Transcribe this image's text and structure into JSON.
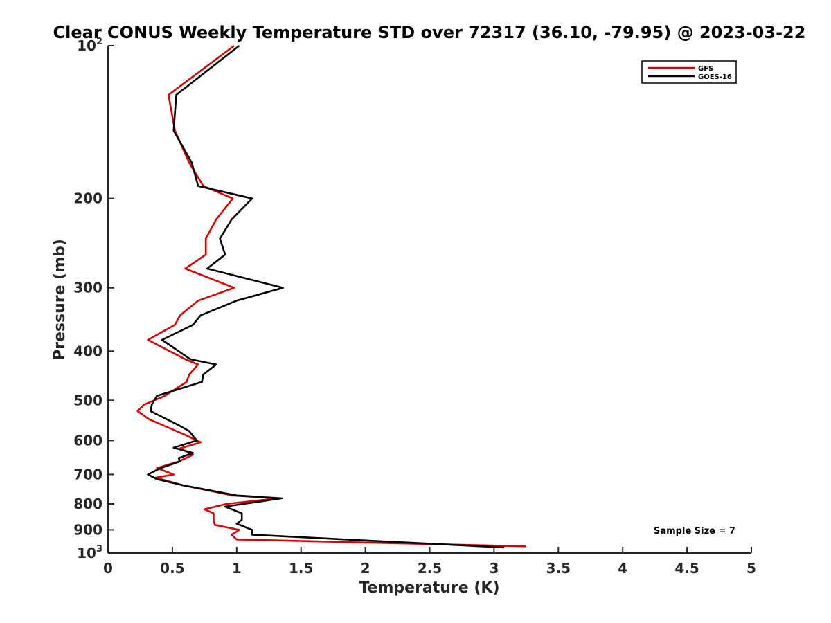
{
  "chart_data": {
    "type": "line",
    "title": "Clear CONUS Weekly Temperature STD over 72317 (36.10, -79.95) @ 2023-03-22",
    "xlabel": "Temperature (K)",
    "ylabel": "Pressure (mb)",
    "xlim": [
      0,
      5
    ],
    "ylim": [
      100,
      1000
    ],
    "y_scale": "log",
    "y_reversed": true,
    "grid": false,
    "legend_position": "top-right",
    "x_ticks": [
      {
        "value": 0,
        "label": "0"
      },
      {
        "value": 0.5,
        "label": "0.5"
      },
      {
        "value": 1,
        "label": "1"
      },
      {
        "value": 1.5,
        "label": "1.5"
      },
      {
        "value": 2,
        "label": "2"
      },
      {
        "value": 2.5,
        "label": "2.5"
      },
      {
        "value": 3,
        "label": "3"
      },
      {
        "value": 3.5,
        "label": "3.5"
      },
      {
        "value": 4,
        "label": "4"
      },
      {
        "value": 4.5,
        "label": "4.5"
      },
      {
        "value": 5,
        "label": "5"
      }
    ],
    "y_ticks": [
      {
        "value": 100,
        "base": "10",
        "sup": "2"
      },
      {
        "value": 200,
        "label": "200"
      },
      {
        "value": 300,
        "label": "300"
      },
      {
        "value": 400,
        "label": "400"
      },
      {
        "value": 500,
        "label": "500"
      },
      {
        "value": 600,
        "label": "600"
      },
      {
        "value": 700,
        "label": "700"
      },
      {
        "value": 800,
        "label": "800"
      },
      {
        "value": 900,
        "label": "900"
      },
      {
        "value": 1000,
        "base": "10",
        "sup": "3"
      }
    ],
    "series": [
      {
        "name": "GFS",
        "color": "#e00000",
        "points": [
          [
            0.98,
            100
          ],
          [
            0.47,
            125
          ],
          [
            0.52,
            147
          ],
          [
            0.63,
            170
          ],
          [
            0.74,
            189
          ],
          [
            0.97,
            200
          ],
          [
            0.84,
            220
          ],
          [
            0.76,
            240
          ],
          [
            0.76,
            258
          ],
          [
            0.6,
            275
          ],
          [
            0.98,
            300
          ],
          [
            0.7,
            318
          ],
          [
            0.56,
            340
          ],
          [
            0.52,
            355
          ],
          [
            0.31,
            380
          ],
          [
            0.6,
            415
          ],
          [
            0.7,
            425
          ],
          [
            0.63,
            445
          ],
          [
            0.61,
            460
          ],
          [
            0.44,
            490
          ],
          [
            0.28,
            510
          ],
          [
            0.23,
            525
          ],
          [
            0.32,
            545
          ],
          [
            0.6,
            585
          ],
          [
            0.72,
            605
          ],
          [
            0.56,
            622
          ],
          [
            0.66,
            640
          ],
          [
            0.55,
            660
          ],
          [
            0.38,
            680
          ],
          [
            0.51,
            700
          ],
          [
            0.37,
            710
          ],
          [
            0.58,
            735
          ],
          [
            0.97,
            770
          ],
          [
            1.32,
            780
          ],
          [
            0.92,
            800
          ],
          [
            0.75,
            820
          ],
          [
            0.82,
            835
          ],
          [
            0.82,
            860
          ],
          [
            0.83,
            880
          ],
          [
            1.02,
            900
          ],
          [
            0.96,
            920
          ],
          [
            1.0,
            940
          ],
          [
            3.25,
            970
          ]
        ]
      },
      {
        "name": "GOES-16",
        "color": "#000000",
        "points": [
          [
            1.02,
            100
          ],
          [
            0.53,
            125
          ],
          [
            0.51,
            147
          ],
          [
            0.65,
            170
          ],
          [
            0.7,
            189
          ],
          [
            1.12,
            200
          ],
          [
            0.96,
            220
          ],
          [
            0.87,
            240
          ],
          [
            0.91,
            258
          ],
          [
            0.77,
            275
          ],
          [
            1.36,
            300
          ],
          [
            1.0,
            318
          ],
          [
            0.72,
            340
          ],
          [
            0.66,
            355
          ],
          [
            0.42,
            380
          ],
          [
            0.64,
            415
          ],
          [
            0.84,
            425
          ],
          [
            0.74,
            445
          ],
          [
            0.73,
            460
          ],
          [
            0.38,
            490
          ],
          [
            0.34,
            510
          ],
          [
            0.33,
            525
          ],
          [
            0.55,
            560
          ],
          [
            0.63,
            575
          ],
          [
            0.69,
            600
          ],
          [
            0.51,
            620
          ],
          [
            0.66,
            635
          ],
          [
            0.55,
            650
          ],
          [
            0.56,
            660
          ],
          [
            0.41,
            680
          ],
          [
            0.31,
            700
          ],
          [
            0.38,
            715
          ],
          [
            0.58,
            735
          ],
          [
            1.0,
            770
          ],
          [
            1.35,
            780
          ],
          [
            0.91,
            810
          ],
          [
            1.04,
            835
          ],
          [
            1.04,
            860
          ],
          [
            1.0,
            875
          ],
          [
            1.12,
            900
          ],
          [
            1.12,
            920
          ],
          [
            3.08,
            975
          ]
        ]
      }
    ],
    "annotations": [
      {
        "text": "Sample Size = 7"
      }
    ]
  }
}
